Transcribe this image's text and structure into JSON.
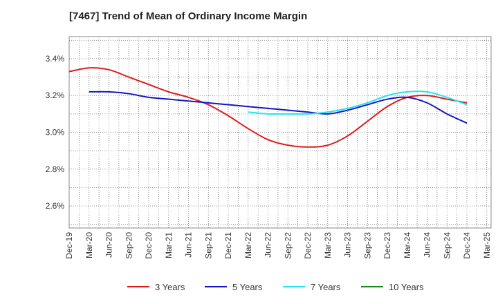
{
  "chart_data": {
    "type": "line",
    "title": "[7467]  Trend of Mean of Ordinary Income Margin",
    "xlabel": "",
    "ylabel": "",
    "x_ticks": [
      "Dec-19",
      "Mar-20",
      "Jun-20",
      "Sep-20",
      "Dec-20",
      "Mar-21",
      "Jun-21",
      "Sep-21",
      "Dec-21",
      "Mar-22",
      "Jun-22",
      "Sep-22",
      "Dec-22",
      "Mar-23",
      "Jun-23",
      "Sep-23",
      "Dec-23",
      "Mar-24",
      "Jun-24",
      "Sep-24",
      "Dec-24",
      "Mar-25"
    ],
    "y_ticks": [
      "2.6%",
      "2.8%",
      "3.0%",
      "3.2%",
      "3.4%"
    ],
    "y_tick_values": [
      2.6,
      2.8,
      3.0,
      3.2,
      3.4
    ],
    "ylim": [
      2.48,
      3.52
    ],
    "grid": true,
    "legend_position": "bottom",
    "series": [
      {
        "name": "3 Years",
        "color": "#dd1b1b",
        "points": [
          [
            "Dec-19",
            3.33
          ],
          [
            "Mar-20",
            3.35
          ],
          [
            "Jun-20",
            3.34
          ],
          [
            "Sep-20",
            3.3
          ],
          [
            "Dec-20",
            3.26
          ],
          [
            "Mar-21",
            3.22
          ],
          [
            "Jun-21",
            3.19
          ],
          [
            "Sep-21",
            3.15
          ],
          [
            "Dec-21",
            3.09
          ],
          [
            "Mar-22",
            3.02
          ],
          [
            "Jun-22",
            2.96
          ],
          [
            "Sep-22",
            2.93
          ],
          [
            "Dec-22",
            2.92
          ],
          [
            "Mar-23",
            2.93
          ],
          [
            "Jun-23",
            2.98
          ],
          [
            "Sep-23",
            3.06
          ],
          [
            "Dec-23",
            3.14
          ],
          [
            "Mar-24",
            3.19
          ],
          [
            "Jun-24",
            3.2
          ],
          [
            "Sep-24",
            3.18
          ],
          [
            "Dec-24",
            3.16
          ]
        ]
      },
      {
        "name": "5 Years",
        "color": "#1515c8",
        "points": [
          [
            "Mar-20",
            3.22
          ],
          [
            "Jun-20",
            3.22
          ],
          [
            "Sep-20",
            3.21
          ],
          [
            "Dec-20",
            3.19
          ],
          [
            "Mar-21",
            3.18
          ],
          [
            "Jun-21",
            3.17
          ],
          [
            "Sep-21",
            3.16
          ],
          [
            "Dec-21",
            3.15
          ],
          [
            "Mar-22",
            3.14
          ],
          [
            "Jun-22",
            3.13
          ],
          [
            "Sep-22",
            3.12
          ],
          [
            "Dec-22",
            3.11
          ],
          [
            "Mar-23",
            3.1
          ],
          [
            "Jun-23",
            3.12
          ],
          [
            "Sep-23",
            3.15
          ],
          [
            "Dec-23",
            3.18
          ],
          [
            "Mar-24",
            3.19
          ],
          [
            "Jun-24",
            3.16
          ],
          [
            "Sep-24",
            3.1
          ],
          [
            "Dec-24",
            3.05
          ]
        ]
      },
      {
        "name": "7 Years",
        "color": "#22e5ee",
        "points": [
          [
            "Mar-22",
            3.11
          ],
          [
            "Jun-22",
            3.1
          ],
          [
            "Sep-22",
            3.1
          ],
          [
            "Dec-22",
            3.1
          ],
          [
            "Mar-23",
            3.11
          ],
          [
            "Jun-23",
            3.13
          ],
          [
            "Sep-23",
            3.16
          ],
          [
            "Dec-23",
            3.2
          ],
          [
            "Mar-24",
            3.22
          ],
          [
            "Jun-24",
            3.22
          ],
          [
            "Sep-24",
            3.19
          ],
          [
            "Dec-24",
            3.15
          ]
        ]
      },
      {
        "name": "10 Years",
        "color": "#1a8a1a",
        "points": []
      }
    ]
  }
}
